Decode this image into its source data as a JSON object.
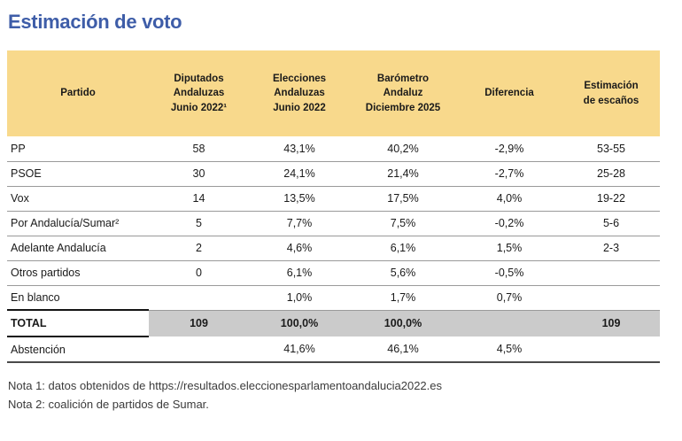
{
  "page_title": "Estimación de voto",
  "table": {
    "columns": [
      "Partido",
      "Diputados\nAndaluzas\nJunio 2022¹",
      "Elecciones\nAndaluzas\nJunio 2022",
      "Barómetro\nAndaluz\nDiciembre 2025",
      "Diferencia",
      "Estimación\nde escaños"
    ],
    "rows": [
      {
        "partido": "PP",
        "diputados": "58",
        "elecciones": "43,1%",
        "barometro": "40,2%",
        "diferencia": "-2,9%",
        "escanos": "53-55"
      },
      {
        "partido": "PSOE",
        "diputados": "30",
        "elecciones": "24,1%",
        "barometro": "21,4%",
        "diferencia": "-2,7%",
        "escanos": "25-28"
      },
      {
        "partido": "Vox",
        "diputados": "14",
        "elecciones": "13,5%",
        "barometro": "17,5%",
        "diferencia": "4,0%",
        "escanos": "19-22"
      },
      {
        "partido": "Por Andalucía/Sumar²",
        "diputados": "5",
        "elecciones": "7,7%",
        "barometro": "7,5%",
        "diferencia": "-0,2%",
        "escanos": "5-6"
      },
      {
        "partido": "Adelante Andalucía",
        "diputados": "2",
        "elecciones": "4,6%",
        "barometro": "6,1%",
        "diferencia": "1,5%",
        "escanos": "2-3"
      },
      {
        "partido": "Otros partidos",
        "diputados": "0",
        "elecciones": "6,1%",
        "barometro": "5,6%",
        "diferencia": "-0,5%",
        "escanos": ""
      },
      {
        "partido": "En blanco",
        "diputados": "",
        "elecciones": "1,0%",
        "barometro": "1,7%",
        "diferencia": "0,7%",
        "escanos": ""
      },
      {
        "partido": "TOTAL",
        "diputados": "109",
        "elecciones": "100,0%",
        "barometro": "100,0%",
        "diferencia": "",
        "escanos": "109"
      },
      {
        "partido": "Abstención",
        "diputados": "",
        "elecciones": "41,6%",
        "barometro": "46,1%",
        "diferencia": "4,5%",
        "escanos": ""
      }
    ]
  },
  "notes": [
    "Nota 1: datos obtenidos de https://resultados.eleccionesparlamentoandalucia2022.es",
    "Nota 2: coalición de partidos de Sumar."
  ],
  "colors": {
    "title_text": "#3E5DA8",
    "header_bg": "#F8D98C",
    "total_row_bg": "#CBCBCB",
    "row_line": "#9A9A9A",
    "table_bottom_line": "#4A4A4A",
    "total_border": "#141414"
  }
}
